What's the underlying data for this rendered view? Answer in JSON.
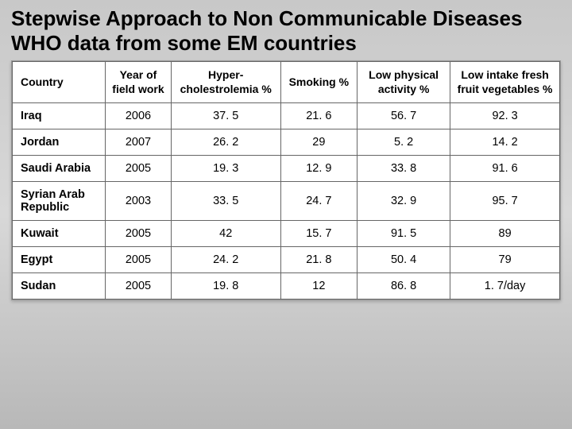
{
  "title_line1": "Stepwise Approach to Non Communicable Diseases",
  "title_line2": "WHO data from some EM countries",
  "table": {
    "type": "table",
    "columns": [
      "Country",
      "Year of field work",
      "Hyper-cholestrolemia %",
      "Smoking %",
      "Low physical activity %",
      "Low intake fresh fruit vegetables %"
    ],
    "rows": [
      [
        "Iraq",
        "2006",
        "37. 5",
        "21. 6",
        "56. 7",
        "92. 3"
      ],
      [
        "Jordan",
        "2007",
        "26. 2",
        "29",
        "5. 2",
        "14. 2"
      ],
      [
        "Saudi Arabia",
        "2005",
        "19. 3",
        "12. 9",
        "33. 8",
        "91. 6"
      ],
      [
        "Syrian Arab Republic",
        "2003",
        "33. 5",
        "24. 7",
        "32. 9",
        "95. 7"
      ],
      [
        "Kuwait",
        "2005",
        "42",
        "15. 7",
        "91. 5",
        "89"
      ],
      [
        "Egypt",
        "2005",
        "24. 2",
        "21. 8",
        "50. 4",
        "79"
      ],
      [
        "Sudan",
        "2005",
        "19. 8",
        "12",
        "86. 8",
        "1. 7/day"
      ]
    ],
    "header_fontsize": 14,
    "cell_fontsize": 14.5,
    "border_color": "#666666",
    "background_color": "#ffffff"
  },
  "slide_bg_top": "#c8c8c8",
  "slide_bg_bottom": "#b8b8b8"
}
